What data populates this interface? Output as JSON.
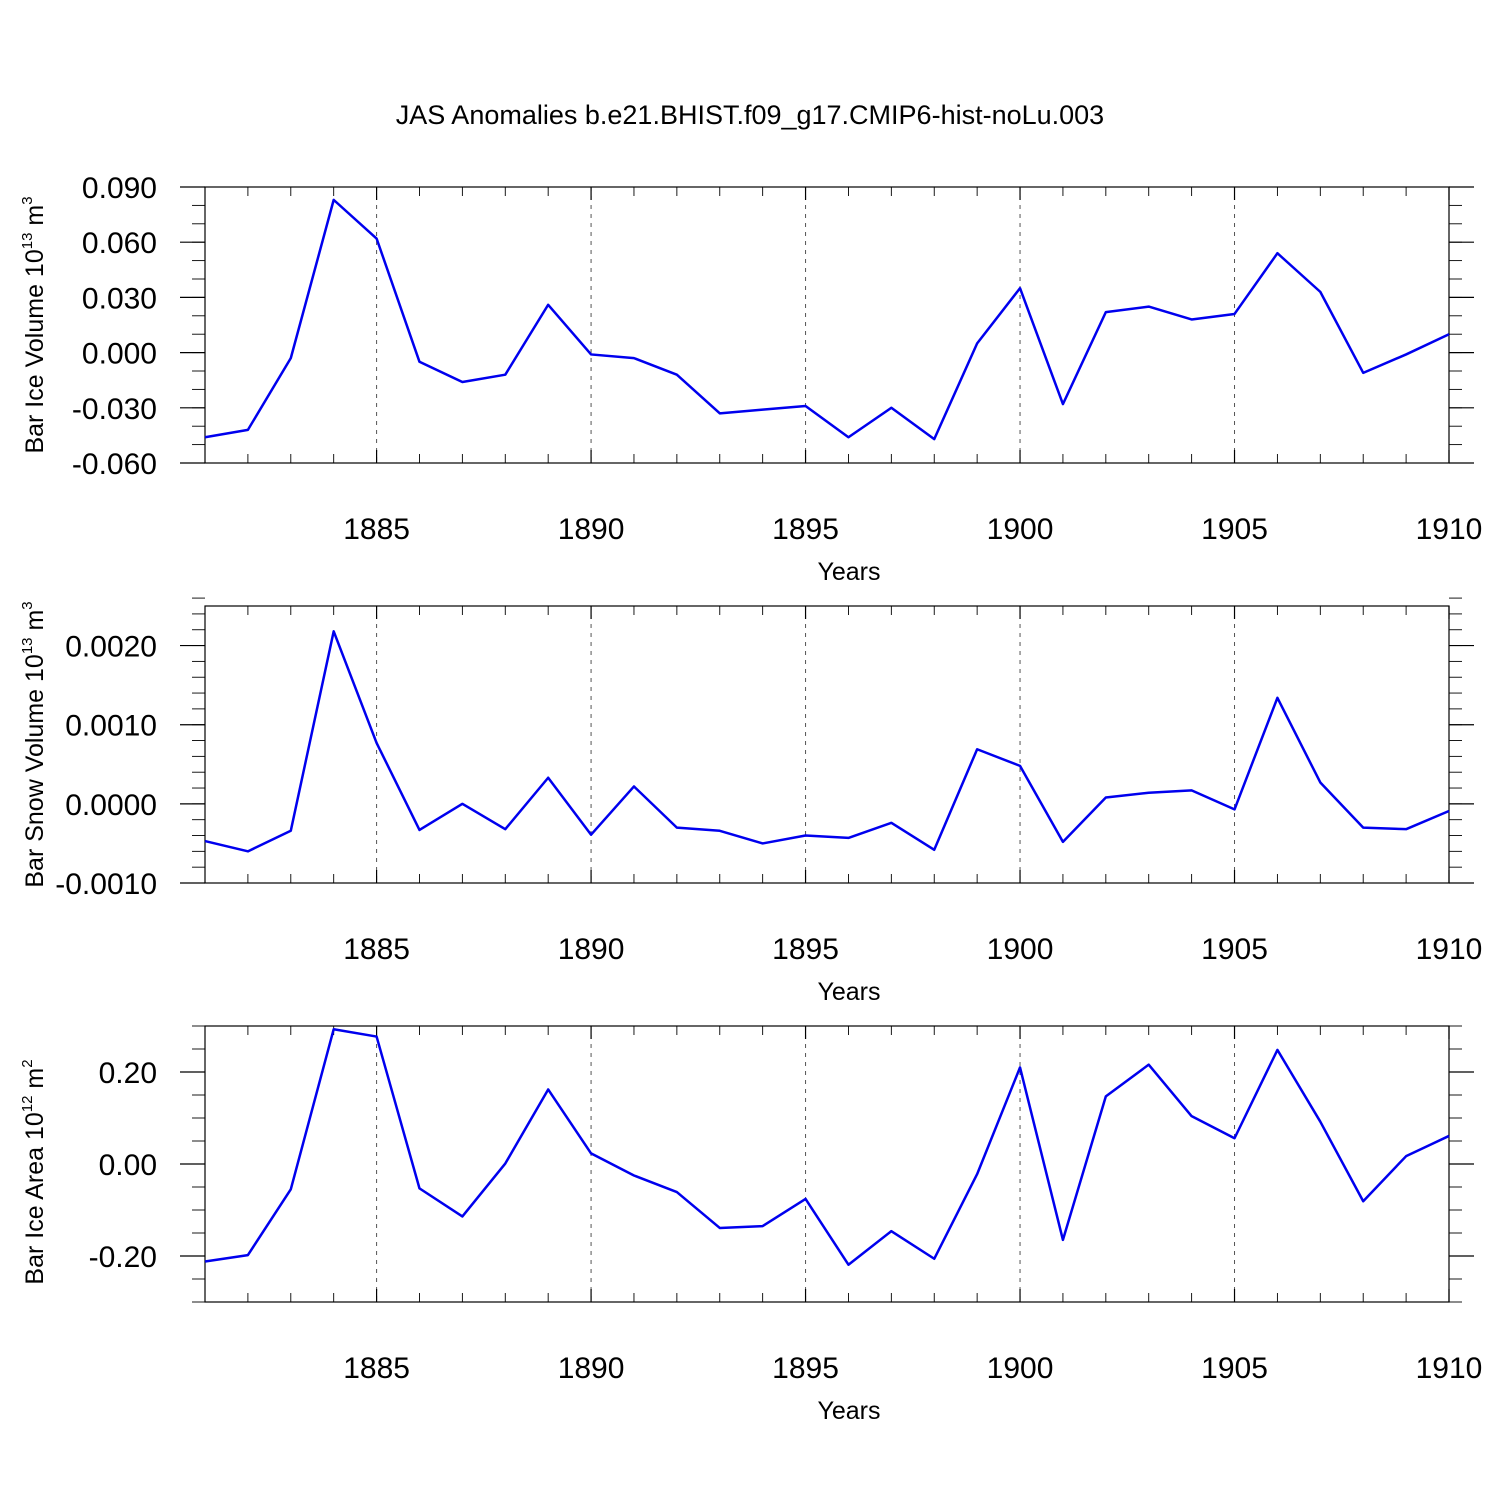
{
  "title": "JAS Anomalies b.e21.BHIST.f09_g17.CMIP6-hist-noLu.003",
  "chart_data": [
    {
      "type": "line",
      "ylabel_main": "Bar Ice Volume 10",
      "ylabel_exp": "13",
      "ylabel_unit": " m",
      "ylabel_unit_exp": "3",
      "xlabel": "Years",
      "xlim": [
        1881,
        1910
      ],
      "ylim": [
        -0.06,
        0.09
      ],
      "yticks": [
        -0.06,
        -0.03,
        0.0,
        0.03,
        0.06,
        0.09
      ],
      "ytick_labels": [
        "-0.060",
        "-0.030",
        "0.000",
        "0.030",
        "0.060",
        "0.090"
      ],
      "yminor_step": 0.01,
      "xticks": [
        1885,
        1890,
        1895,
        1900,
        1905,
        1910
      ],
      "xtick_labels": [
        "1885",
        "1890",
        "1895",
        "1900",
        "1905",
        "1910"
      ],
      "x": [
        1881,
        1882,
        1883,
        1884,
        1885,
        1886,
        1887,
        1888,
        1889,
        1890,
        1891,
        1892,
        1893,
        1894,
        1895,
        1896,
        1897,
        1898,
        1899,
        1900,
        1901,
        1902,
        1903,
        1904,
        1905,
        1906,
        1907,
        1908,
        1909,
        1910
      ],
      "values": [
        -0.046,
        -0.042,
        -0.003,
        0.083,
        0.062,
        -0.005,
        -0.016,
        -0.012,
        0.026,
        -0.001,
        -0.003,
        -0.012,
        -0.033,
        -0.031,
        -0.029,
        -0.046,
        -0.03,
        -0.047,
        0.005,
        0.035,
        -0.028,
        0.022,
        0.025,
        0.018,
        0.021,
        0.054,
        0.033,
        -0.011,
        -0.001,
        0.01
      ],
      "grid": "dashed vertical at major x ticks"
    },
    {
      "type": "line",
      "ylabel_main": "Bar Snow Volume 10",
      "ylabel_exp": "13",
      "ylabel_unit": " m",
      "ylabel_unit_exp": "3",
      "xlabel": "Years",
      "xlim": [
        1881,
        1910
      ],
      "ylim": [
        -0.001,
        0.0025
      ],
      "yticks": [
        -0.001,
        0.0,
        0.001,
        0.002
      ],
      "ytick_labels": [
        "-0.0010",
        "0.0000",
        "0.0010",
        "0.0020"
      ],
      "yminor_step": 0.0002,
      "xticks": [
        1885,
        1890,
        1895,
        1900,
        1905,
        1910
      ],
      "xtick_labels": [
        "1885",
        "1890",
        "1895",
        "1900",
        "1905",
        "1910"
      ],
      "x": [
        1881,
        1882,
        1883,
        1884,
        1885,
        1886,
        1887,
        1888,
        1889,
        1890,
        1891,
        1892,
        1893,
        1894,
        1895,
        1896,
        1897,
        1898,
        1899,
        1900,
        1901,
        1902,
        1903,
        1904,
        1905,
        1906,
        1907,
        1908,
        1909,
        1910
      ],
      "values": [
        -0.00047,
        -0.0006,
        -0.00034,
        0.00218,
        0.00077,
        -0.00033,
        0.0,
        -0.00032,
        0.00033,
        -0.00039,
        0.00022,
        -0.0003,
        -0.00034,
        -0.0005,
        -0.0004,
        -0.00043,
        -0.00024,
        -0.00058,
        0.00069,
        0.00048,
        -0.00048,
        8e-05,
        0.00014,
        0.00017,
        -7e-05,
        0.00134,
        0.00027,
        -0.0003,
        -0.00032,
        -9e-05
      ],
      "grid": "dashed vertical at major x ticks"
    },
    {
      "type": "line",
      "ylabel_main": "Bar Ice Area 10",
      "ylabel_exp": "12",
      "ylabel_unit": " m",
      "ylabel_unit_exp": "2",
      "xlabel": "Years",
      "xlim": [
        1881,
        1910
      ],
      "ylim": [
        -0.3,
        0.3
      ],
      "yticks": [
        -0.2,
        0.0,
        0.2
      ],
      "ytick_labels": [
        "-0.20",
        "0.00",
        "0.20"
      ],
      "yminor_step": 0.05,
      "xticks": [
        1885,
        1890,
        1895,
        1900,
        1905,
        1910
      ],
      "xtick_labels": [
        "1885",
        "1890",
        "1895",
        "1900",
        "1905",
        "1910"
      ],
      "x": [
        1881,
        1882,
        1883,
        1884,
        1885,
        1886,
        1887,
        1888,
        1889,
        1890,
        1891,
        1892,
        1893,
        1894,
        1895,
        1896,
        1897,
        1898,
        1899,
        1900,
        1901,
        1902,
        1903,
        1904,
        1905,
        1906,
        1907,
        1908,
        1909,
        1910
      ],
      "values": [
        -0.212,
        -0.198,
        -0.055,
        0.293,
        0.277,
        -0.053,
        -0.114,
        0.001,
        0.162,
        0.023,
        -0.025,
        -0.061,
        -0.139,
        -0.135,
        -0.076,
        -0.219,
        -0.146,
        -0.206,
        -0.022,
        0.21,
        -0.165,
        0.147,
        0.216,
        0.104,
        0.056,
        0.248,
        0.092,
        -0.081,
        0.017,
        0.061
      ],
      "grid": "dashed vertical at major x ticks"
    }
  ]
}
